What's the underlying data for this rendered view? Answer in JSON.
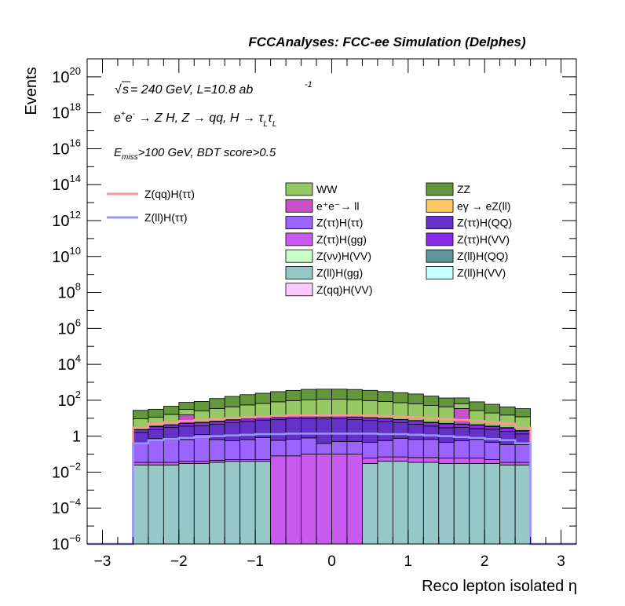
{
  "chart_data": {
    "type": "histogram",
    "title": "FCCAnalyses: FCC-ee Simulation (Delphes)",
    "xlabel": "Reco lepton isolated η",
    "ylabel": "Events",
    "xlim": [
      -3.2,
      3.2
    ],
    "ylim": [
      1e-06,
      1e+21
    ],
    "log_y": true,
    "grid": false,
    "bin_edges": [
      -2.6,
      -2.4,
      -2.2,
      -2.0,
      -1.8,
      -1.6,
      -1.4,
      -1.2,
      -1.0,
      -0.8,
      -0.6,
      -0.4,
      -0.2,
      0.0,
      0.2,
      0.4,
      0.6,
      0.8,
      1.0,
      1.2,
      1.4,
      1.6,
      1.8,
      2.0,
      2.2,
      2.4,
      2.6
    ],
    "x_ticks": [
      "−3",
      "−2",
      "−1",
      "0",
      "1",
      "2",
      "3"
    ],
    "y_ticks": [
      {
        "base": "10",
        "exp": "−6"
      },
      {
        "base": "10",
        "exp": "−4"
      },
      {
        "base": "10",
        "exp": "−2"
      },
      {
        "base": "1",
        "exp": ""
      },
      {
        "base": "10",
        "exp": "2"
      },
      {
        "base": "10",
        "exp": "4"
      },
      {
        "base": "10",
        "exp": "6"
      },
      {
        "base": "10",
        "exp": "8"
      },
      {
        "base": "10",
        "exp": "10"
      },
      {
        "base": "10",
        "exp": "12"
      },
      {
        "base": "10",
        "exp": "14"
      },
      {
        "base": "10",
        "exp": "16"
      },
      {
        "base": "10",
        "exp": "18"
      },
      {
        "base": "10",
        "exp": "20"
      }
    ],
    "annotations": {
      "energy_sqrt": "s",
      "energy_rest": " = 240 GeV, L=10.8 ab",
      "energy_sup": "-1",
      "process": "e⁺e⁻ → Z H, Z → qq, H → τ_L τ_L",
      "cuts_E": "E",
      "cuts_sub": "miss",
      "cuts_rest": ">100 GeV, BDT score>0.5"
    },
    "stack_series": [
      {
        "name": "Z(ll)H(gg)",
        "color": "#96c8c8",
        "values": [
          0.025,
          0.025,
          0.025,
          0.03,
          0.03,
          0.035,
          0.04,
          0.04,
          0.04,
          0.0,
          0.0,
          0.0,
          0.0,
          0.0,
          0.0,
          0.03,
          0.04,
          0.04,
          0.035,
          0.035,
          0.03,
          0.03,
          0.03,
          0.03,
          0.025,
          0.025
        ]
      },
      {
        "name": "Z(ττ)H(gg)",
        "color": "#c85af0",
        "values": [
          0.01,
          0.01,
          0.01,
          0.01,
          0.01,
          0.01,
          0.01,
          0.01,
          0.01,
          0.08,
          0.08,
          0.1,
          0.1,
          0.1,
          0.1,
          0.03,
          0.03,
          0.03,
          0.03,
          0.03,
          0.03,
          0.03,
          0.03,
          0.02,
          0.01,
          0.01
        ]
      },
      {
        "name": "Z(ττ)H(ττ)",
        "color": "#9b64ff",
        "values": [
          0.4,
          0.7,
          0.6,
          0.6,
          1.2,
          0.6,
          0.5,
          0.6,
          0.8,
          0.5,
          0.6,
          0.7,
          0.3,
          0.4,
          0.4,
          0.4,
          0.5,
          0.7,
          0.6,
          0.6,
          0.4,
          0.5,
          0.6,
          0.4,
          0.3,
          0.3
        ]
      },
      {
        "name": "Z(ττ)H(QQ)",
        "color": "#6432c8",
        "values": [
          1.2,
          1.6,
          2.5,
          3.0,
          2.5,
          4.0,
          5.0,
          6.0,
          7.0,
          8.0,
          9.0,
          9.0,
          10.0,
          9.0,
          8.0,
          7.0,
          6.0,
          5.0,
          4.0,
          3.0,
          2.5,
          2.5,
          2.0,
          2.0,
          1.5,
          1.0
        ]
      },
      {
        "name": "Z(ττ)H(VV)",
        "color": "#8c28eb",
        "values": [
          0.6,
          1.0,
          1.0,
          1.5,
          2.0,
          2.0,
          2.5,
          3.0,
          3.0,
          3.0,
          3.5,
          3.5,
          3.5,
          3.5,
          3.0,
          3.0,
          3.0,
          2.5,
          2.5,
          2.0,
          2.0,
          1.5,
          1.5,
          1.0,
          1.0,
          0.6
        ]
      },
      {
        "name": "Z(ll)H(QQ)",
        "color": "#5f9696",
        "values": [
          0.04,
          0.04,
          0.04,
          0.04,
          0.04,
          0.05,
          0.05,
          0.05,
          0.05,
          0.05,
          0.05,
          0.05,
          0.05,
          0.05,
          0.05,
          0.05,
          0.05,
          0.05,
          0.05,
          0.05,
          0.04,
          0.04,
          0.04,
          0.04,
          0.04,
          0.04
        ]
      },
      {
        "name": "Z(qq)H(VV)",
        "color": "#ffc8ff",
        "values": [
          0.05,
          0.08,
          0.1,
          0.1,
          0.1,
          0.12,
          0.12,
          0.12,
          0.14,
          0.14,
          0.14,
          0.14,
          0.14,
          0.14,
          0.14,
          0.14,
          0.14,
          0.12,
          0.12,
          0.12,
          0.1,
          0.1,
          0.1,
          0.1,
          0.08,
          0.05
        ]
      },
      {
        "name": "Z(νν)H(VV)",
        "color": "#c8ffc8",
        "values": [
          0.02,
          0.03,
          0.03,
          0.03,
          0.03,
          0.03,
          0.04,
          0.04,
          0.04,
          0.04,
          0.04,
          0.04,
          0.04,
          0.04,
          0.04,
          0.04,
          0.04,
          0.04,
          0.04,
          0.03,
          0.03,
          0.03,
          0.03,
          0.03,
          0.03,
          0.02
        ]
      },
      {
        "name": "Z(ll)H(VV)",
        "color": "#c8ffff",
        "values": [
          0.02,
          0.02,
          0.02,
          0.02,
          0.02,
          0.02,
          0.02,
          0.02,
          0.02,
          0.02,
          0.02,
          0.02,
          0.02,
          0.02,
          0.02,
          0.02,
          0.02,
          0.02,
          0.02,
          0.02,
          0.02,
          0.02,
          0.02,
          0.02,
          0.02,
          0.02
        ]
      },
      {
        "name": "e⁺e⁻→ ll",
        "color": "#c850c8",
        "values": [
          0,
          0,
          0,
          10,
          0,
          0,
          0,
          0,
          0,
          0,
          0,
          0,
          0,
          0,
          0,
          0,
          0,
          0,
          0,
          0,
          0,
          30,
          0,
          0,
          0,
          0
        ]
      },
      {
        "name": "eγ → eZ(ll)",
        "color": "#ffc864",
        "values": [
          0,
          0.1,
          0,
          0,
          0,
          0,
          0,
          0,
          0,
          0,
          0,
          0,
          0,
          0.1,
          0.1,
          0,
          0,
          0,
          0,
          0.1,
          0,
          0,
          0,
          0,
          0,
          0
        ]
      },
      {
        "name": "WW",
        "color": "#96c864",
        "values": [
          7,
          8,
          12,
          16,
          20,
          28,
          35,
          45,
          55,
          70,
          80,
          90,
          100,
          100,
          95,
          85,
          75,
          65,
          55,
          45,
          38,
          30,
          22,
          16,
          12,
          10
        ]
      },
      {
        "name": "ZZ",
        "color": "#64963c",
        "values": [
          18,
          20,
          30,
          45,
          60,
          90,
          120,
          150,
          180,
          220,
          260,
          300,
          300,
          300,
          290,
          260,
          220,
          190,
          160,
          120,
          90,
          70,
          55,
          40,
          28,
          22
        ]
      }
    ],
    "line_series": [
      {
        "name": "Z(qq)H(ττ)",
        "color": "#ff9696",
        "values": [
          3,
          5,
          6,
          7,
          8,
          9,
          10,
          11,
          12,
          13,
          14,
          14,
          14,
          14,
          14,
          14,
          13,
          12,
          11,
          10,
          9,
          8,
          7,
          6,
          5,
          3
        ]
      },
      {
        "name": "Z(ll)H(ττ)",
        "color": "#9696ff",
        "values": [
          0.4,
          0.6,
          0.7,
          0.8,
          0.9,
          1.0,
          1.1,
          1.2,
          1.3,
          1.3,
          1.4,
          1.4,
          1.4,
          1.4,
          1.4,
          1.4,
          1.3,
          1.3,
          1.2,
          1.1,
          1.0,
          0.9,
          0.8,
          0.7,
          0.6,
          0.4
        ]
      }
    ],
    "legend_stack_order": [
      "WW",
      "ZZ",
      "e⁺e⁻→ ll",
      "eγ → eZ(ll)",
      "Z(ττ)H(ττ)",
      "Z(ττ)H(QQ)",
      "Z(ττ)H(gg)",
      "Z(ττ)H(VV)",
      "Z(νν)H(VV)",
      "Z(ll)H(QQ)",
      "Z(ll)H(gg)",
      "Z(ll)H(VV)",
      "Z(qq)H(VV)"
    ],
    "legend_line_order": [
      "Z(qq)H(ττ)",
      "Z(ll)H(ττ)"
    ]
  }
}
